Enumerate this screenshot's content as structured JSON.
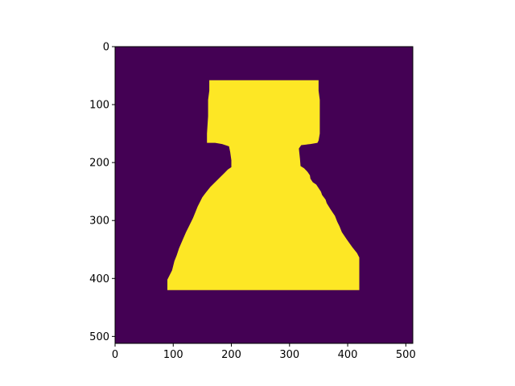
{
  "chart_data": {
    "type": "heatmap",
    "title": "",
    "xlabel": "",
    "ylabel": "",
    "image_size": [
      512,
      512
    ],
    "xlim": [
      0,
      512
    ],
    "ylim": [
      512,
      0
    ],
    "y_inverted": true,
    "x_ticks": [
      0,
      100,
      200,
      300,
      400,
      500
    ],
    "y_ticks": [
      0,
      100,
      200,
      300,
      400,
      500
    ],
    "x_tick_labels": [
      "0",
      "100",
      "200",
      "300",
      "400",
      "500"
    ],
    "y_tick_labels": [
      "0",
      "100",
      "200",
      "300",
      "400",
      "500"
    ],
    "colormap": "viridis",
    "colors": {
      "background": "#440154",
      "foreground": "#fde725"
    },
    "grid": false,
    "mask_outline": [
      [
        162,
        58
      ],
      [
        350,
        58
      ],
      [
        350,
        76
      ],
      [
        352,
        92
      ],
      [
        352,
        150
      ],
      [
        350,
        162
      ],
      [
        348,
        166
      ],
      [
        336,
        168
      ],
      [
        320,
        170
      ],
      [
        316,
        176
      ],
      [
        318,
        194
      ],
      [
        319,
        206
      ],
      [
        325,
        210
      ],
      [
        331,
        216
      ],
      [
        335,
        222
      ],
      [
        336,
        228
      ],
      [
        340,
        234
      ],
      [
        346,
        238
      ],
      [
        350,
        244
      ],
      [
        354,
        250
      ],
      [
        356,
        256
      ],
      [
        362,
        264
      ],
      [
        364,
        270
      ],
      [
        370,
        280
      ],
      [
        374,
        286
      ],
      [
        378,
        292
      ],
      [
        382,
        302
      ],
      [
        386,
        310
      ],
      [
        390,
        320
      ],
      [
        398,
        332
      ],
      [
        408,
        346
      ],
      [
        416,
        356
      ],
      [
        420,
        364
      ],
      [
        420,
        420
      ],
      [
        90,
        420
      ],
      [
        90,
        402
      ],
      [
        94,
        394
      ],
      [
        98,
        386
      ],
      [
        100,
        378
      ],
      [
        102,
        370
      ],
      [
        106,
        360
      ],
      [
        110,
        348
      ],
      [
        116,
        334
      ],
      [
        122,
        320
      ],
      [
        128,
        308
      ],
      [
        134,
        296
      ],
      [
        138,
        286
      ],
      [
        142,
        276
      ],
      [
        146,
        268
      ],
      [
        150,
        260
      ],
      [
        156,
        252
      ],
      [
        164,
        242
      ],
      [
        172,
        234
      ],
      [
        180,
        226
      ],
      [
        188,
        218
      ],
      [
        194,
        212
      ],
      [
        200,
        208
      ],
      [
        200,
        196
      ],
      [
        198,
        182
      ],
      [
        196,
        172
      ],
      [
        184,
        168
      ],
      [
        172,
        166
      ],
      [
        158,
        166
      ],
      [
        158,
        150
      ],
      [
        160,
        120
      ],
      [
        160,
        92
      ],
      [
        162,
        76
      ]
    ]
  }
}
